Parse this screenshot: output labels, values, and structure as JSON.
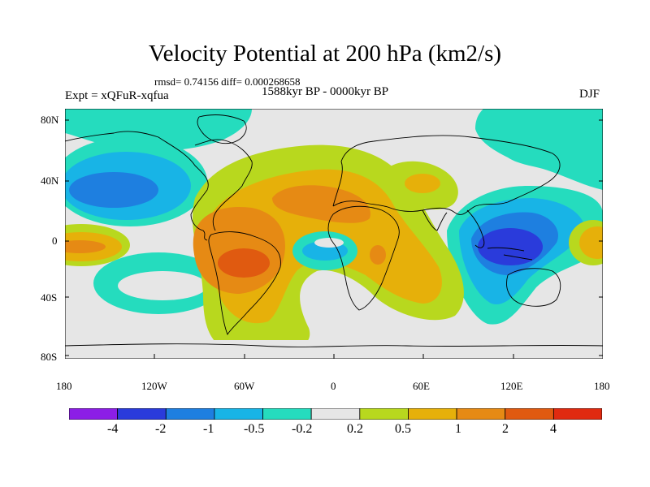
{
  "figure": {
    "title": "Velocity Potential at 200 hPa (km2/s)",
    "stats": "rmsd= 0.74156  diff= 0.000268658",
    "experiment": "Expt = xQFuR-xqfua",
    "period": "1588kyr BP - 0000kyr BP",
    "season": "DJF"
  },
  "axes": {
    "lat_labels": [
      "80N",
      "40N",
      "0",
      "40S",
      "80S"
    ],
    "lon_labels": [
      "180",
      "120W",
      "60W",
      "0",
      "60E",
      "120E",
      "180"
    ]
  },
  "colorbar": {
    "colors": [
      "#8c1ee6",
      "#2a3bdb",
      "#1e7fe0",
      "#18b4e6",
      "#25dcbe",
      "#e6e6e6",
      "#b8d81e",
      "#e6b00a",
      "#e68a14",
      "#e05a10",
      "#e02a10"
    ],
    "tick_labels": [
      "-4",
      "-2",
      "-1",
      "-0.5",
      "-0.2",
      "0.2",
      "0.5",
      "1",
      "2",
      "4"
    ]
  },
  "map_colors": {
    "ocean_bg": "#e6e6e6",
    "coast": "#000000"
  }
}
